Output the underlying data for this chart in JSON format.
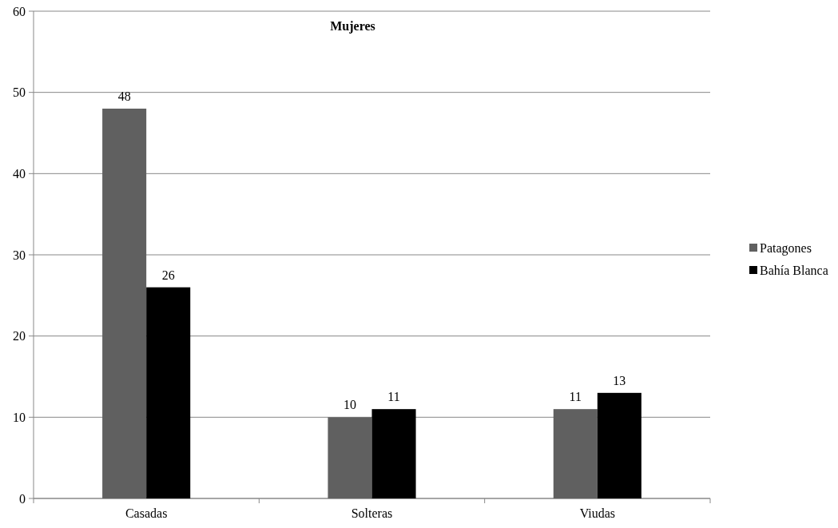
{
  "chart_data": {
    "type": "bar",
    "title": "Mujeres",
    "categories": [
      "Casadas",
      "Solteras",
      "Viudas"
    ],
    "series": [
      {
        "name": "Patagones",
        "color": "#606060",
        "values": [
          48,
          10,
          11
        ]
      },
      {
        "name": "Bahía Blanca",
        "color": "#000000",
        "values": [
          26,
          11,
          13
        ]
      }
    ],
    "ylim": [
      0,
      60
    ],
    "yticks": [
      0,
      10,
      20,
      30,
      40,
      50,
      60
    ],
    "grid": "y",
    "legend": "right",
    "data_labels": true
  }
}
